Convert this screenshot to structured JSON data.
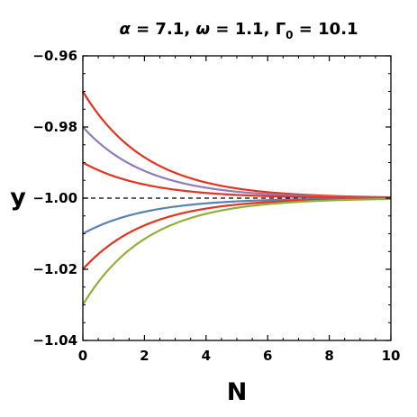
{
  "chart_data": {
    "type": "line",
    "title_parts": {
      "alpha_sym": "α",
      "alpha_val": " = 7.1, ",
      "omega_sym": "ω",
      "omega_val": " = 1.1, ",
      "gamma_sym": "Γ",
      "gamma_sub": "0",
      "gamma_val": " = 10.1"
    },
    "xlabel": "N",
    "ylabel": "y",
    "xlim": [
      0,
      10
    ],
    "ylim": [
      -1.04,
      -0.96
    ],
    "xticks": [
      0,
      2,
      4,
      6,
      8,
      10
    ],
    "yticks": [
      -1.04,
      -1.02,
      -1.0,
      -0.98,
      -0.96
    ],
    "ytick_labels": [
      "−1.04",
      "−1.02",
      "−1.00",
      "−0.98",
      "−0.96"
    ],
    "reference_line": {
      "y": -1.0,
      "style": "dashed",
      "color": "#000000"
    },
    "series": [
      {
        "color": "#e8311e",
        "start": -0.97,
        "end": -1.0
      },
      {
        "color": "#8f7cb8",
        "start": -0.98,
        "end": -1.0
      },
      {
        "color": "#e8311e",
        "start": -0.99,
        "end": -1.0
      },
      {
        "color": "#5b80b4",
        "start": -1.01,
        "end": -1.0
      },
      {
        "color": "#e8311e",
        "start": -1.02,
        "end": -1.0
      },
      {
        "color": "#8fb03a",
        "start": -1.03,
        "end": -1.0
      }
    ]
  }
}
